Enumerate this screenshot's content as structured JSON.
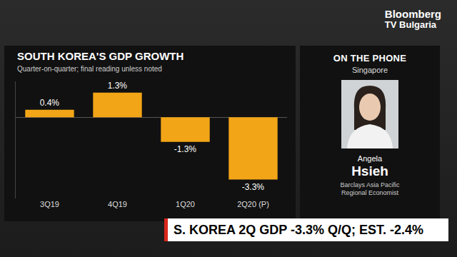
{
  "chart_data": {
    "type": "bar",
    "title": "SOUTH KOREA'S GDP GROWTH",
    "subtitle": "Quarter-on-quarter; final reading unless noted",
    "categories": [
      "3Q19",
      "4Q19",
      "1Q20",
      "2Q20 (P)"
    ],
    "values": [
      0.4,
      1.3,
      -1.3,
      -3.3
    ],
    "value_labels": [
      "0.4%",
      "1.3%",
      "-1.3%",
      "-3.3%"
    ],
    "data_labels": true,
    "color": "#f2a516",
    "ylim": [
      -4.3,
      1.9
    ],
    "tick_labels": "x",
    "grid": false
  },
  "logo": {
    "line1": "Bloomberg",
    "line2": "TV Bulgaria"
  },
  "panel": {
    "title": "ON THE PHONE",
    "location": "Singapore",
    "first_name": "Angela",
    "last_name": "Hsieh",
    "role": [
      "Barclays Asia Pacific",
      "Regional Economist"
    ]
  },
  "headline": "S. KOREA 2Q GDP -3.3% Q/Q; EST. -2.4%"
}
